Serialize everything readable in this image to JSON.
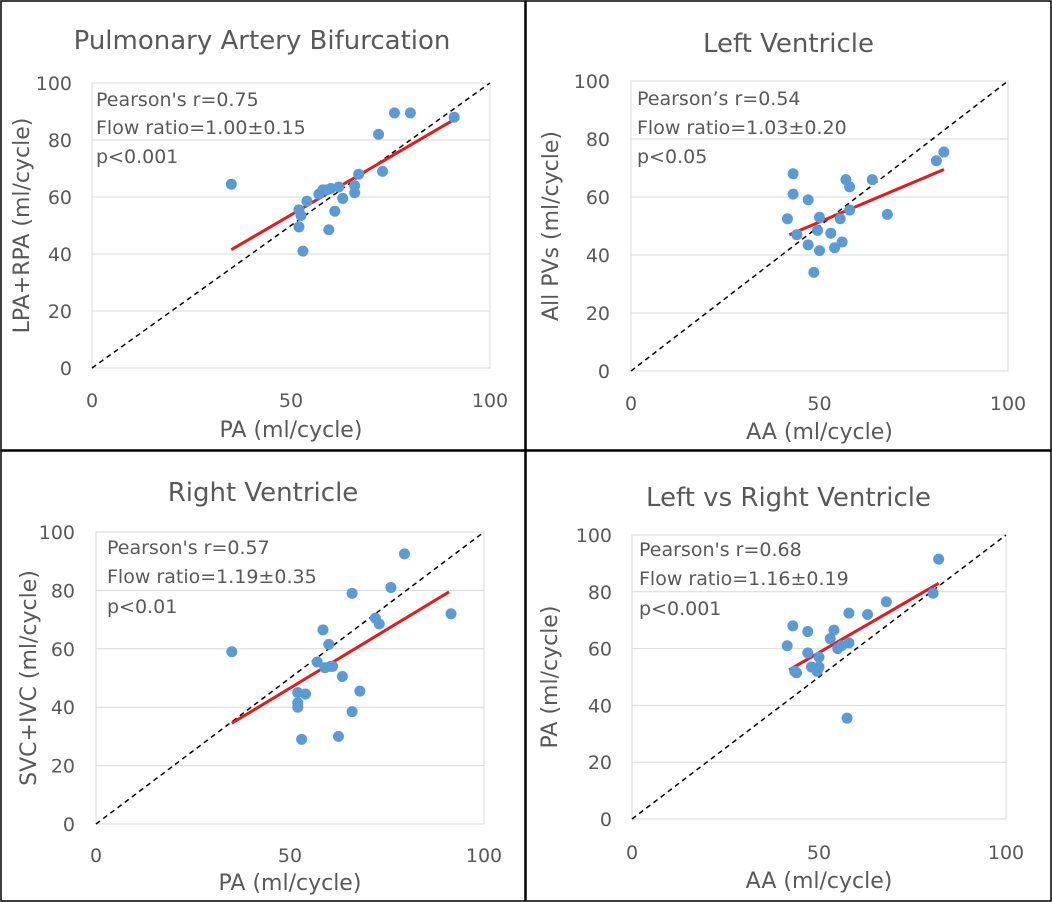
{
  "colors": {
    "point": "#5b9bd5",
    "fit_line": "#e8191c",
    "identity_line": "#000000",
    "gridline": "#d9d9d9",
    "text": "#595959",
    "border": "#000000"
  },
  "chart_data": [
    {
      "id": "pa-bifurcation",
      "type": "scatter",
      "title": "Pulmonary Artery Bifurcation",
      "xlabel": "PA (ml/cycle)",
      "ylabel": "LPA+RPA (ml/cycle)",
      "xlim": [
        0,
        100
      ],
      "ylim": [
        0,
        100
      ],
      "xticks": [
        "0",
        "50",
        "100"
      ],
      "yticks": [
        "0",
        "20",
        "40",
        "60",
        "80",
        "100"
      ],
      "annotations": [
        "Pearson's r=0.75",
        "Flow ratio=1.00±0.15",
        "p<0.001"
      ],
      "identity_line": true,
      "fit_line": [
        [
          35,
          41.5
        ],
        [
          92,
          88
        ]
      ],
      "points": [
        [
          35,
          64.5
        ],
        [
          52,
          55.5
        ],
        [
          52,
          49.5
        ],
        [
          52.5,
          53.5
        ],
        [
          53,
          41
        ],
        [
          54,
          58.5
        ],
        [
          57,
          61
        ],
        [
          58,
          62.5
        ],
        [
          59,
          62.5
        ],
        [
          59.5,
          48.5
        ],
        [
          60,
          63
        ],
        [
          61,
          55
        ],
        [
          62,
          63.5
        ],
        [
          63,
          59.5
        ],
        [
          66,
          64
        ],
        [
          66,
          61.5
        ],
        [
          67,
          68
        ],
        [
          72,
          82
        ],
        [
          73,
          69
        ],
        [
          76,
          89.5
        ],
        [
          80,
          89.5
        ],
        [
          91,
          88
        ]
      ]
    },
    {
      "id": "left-ventricle",
      "type": "scatter",
      "title": "Left Ventricle",
      "xlabel": "AA (ml/cycle)",
      "ylabel": "All PVs (ml/cycle)",
      "xlim": [
        0,
        100
      ],
      "ylim": [
        0,
        100
      ],
      "xticks": [
        "0",
        "50",
        "100"
      ],
      "yticks": [
        "0",
        "20",
        "40",
        "60",
        "80",
        "100"
      ],
      "annotations": [
        "Pearson’s r=0.54",
        "Flow ratio=1.03±0.20",
        "p<0.05"
      ],
      "identity_line": true,
      "fit_line": [
        [
          42,
          47
        ],
        [
          83,
          69.5
        ]
      ],
      "points": [
        [
          41.5,
          52.5
        ],
        [
          43,
          68
        ],
        [
          43,
          61
        ],
        [
          44,
          47
        ],
        [
          47,
          59
        ],
        [
          47,
          43.5
        ],
        [
          48.5,
          34
        ],
        [
          49.5,
          48.5
        ],
        [
          50,
          53
        ],
        [
          50,
          41.5
        ],
        [
          53,
          47.5
        ],
        [
          54,
          42.5
        ],
        [
          55.5,
          52.5
        ],
        [
          56,
          44.5
        ],
        [
          57,
          66
        ],
        [
          58,
          63.5
        ],
        [
          58,
          55.5
        ],
        [
          64,
          66
        ],
        [
          68,
          54
        ],
        [
          81,
          72.5
        ],
        [
          83,
          75.5
        ]
      ]
    },
    {
      "id": "right-ventricle",
      "type": "scatter",
      "title": "Right Ventricle",
      "xlabel": "PA (ml/cycle)",
      "ylabel": "SVC+IVC (ml/cycle)",
      "xlim": [
        0,
        100
      ],
      "ylim": [
        0,
        100
      ],
      "xticks": [
        "0",
        "50",
        "100"
      ],
      "yticks": [
        "0",
        "20",
        "40",
        "60",
        "80",
        "100"
      ],
      "annotations": [
        "Pearson's r=0.57",
        "Flow ratio=1.19±0.35",
        "p<0.01"
      ],
      "identity_line": true,
      "fit_line": [
        [
          35,
          34.5
        ],
        [
          91,
          79.5
        ]
      ],
      "points": [
        [
          35,
          59
        ],
        [
          52,
          45
        ],
        [
          52,
          41.5
        ],
        [
          52,
          40
        ],
        [
          53,
          29
        ],
        [
          54,
          44.5
        ],
        [
          57,
          55.5
        ],
        [
          58.5,
          66.5
        ],
        [
          59,
          53.5
        ],
        [
          60,
          61.5
        ],
        [
          60.5,
          54
        ],
        [
          61,
          54
        ],
        [
          62.5,
          30
        ],
        [
          63.5,
          50.5
        ],
        [
          66,
          79
        ],
        [
          66,
          38.5
        ],
        [
          68,
          45.5
        ],
        [
          72,
          70.5
        ],
        [
          73,
          68.5
        ],
        [
          76,
          81
        ],
        [
          79.5,
          92.5
        ],
        [
          91.5,
          72
        ]
      ]
    },
    {
      "id": "left-vs-right",
      "type": "scatter",
      "title": "Left vs Right Ventricle",
      "xlabel": "AA (ml/cycle)",
      "ylabel": "PA (ml/cycle)",
      "xlim": [
        0,
        100
      ],
      "ylim": [
        0,
        100
      ],
      "xticks": [
        "0",
        "50",
        "100"
      ],
      "yticks": [
        "0",
        "20",
        "40",
        "60",
        "80",
        "100"
      ],
      "annotations": [
        "Pearson's r=0.68",
        "Flow ratio=1.16±0.19",
        "p<0.001"
      ],
      "identity_line": true,
      "fit_line": [
        [
          42,
          52.5
        ],
        [
          82,
          83
        ]
      ],
      "points": [
        [
          41.5,
          61
        ],
        [
          43,
          68
        ],
        [
          43.5,
          52
        ],
        [
          44,
          51.5
        ],
        [
          47,
          66
        ],
        [
          47,
          58.5
        ],
        [
          48,
          53.5
        ],
        [
          49.5,
          52
        ],
        [
          50,
          57
        ],
        [
          50,
          53.5
        ],
        [
          53,
          63.5
        ],
        [
          54,
          66.5
        ],
        [
          55,
          60
        ],
        [
          56,
          61
        ],
        [
          57.5,
          35.5
        ],
        [
          58,
          62
        ],
        [
          58,
          72.5
        ],
        [
          63,
          72
        ],
        [
          68,
          76.5
        ],
        [
          80.5,
          79.5
        ],
        [
          82,
          91.5
        ]
      ]
    }
  ]
}
